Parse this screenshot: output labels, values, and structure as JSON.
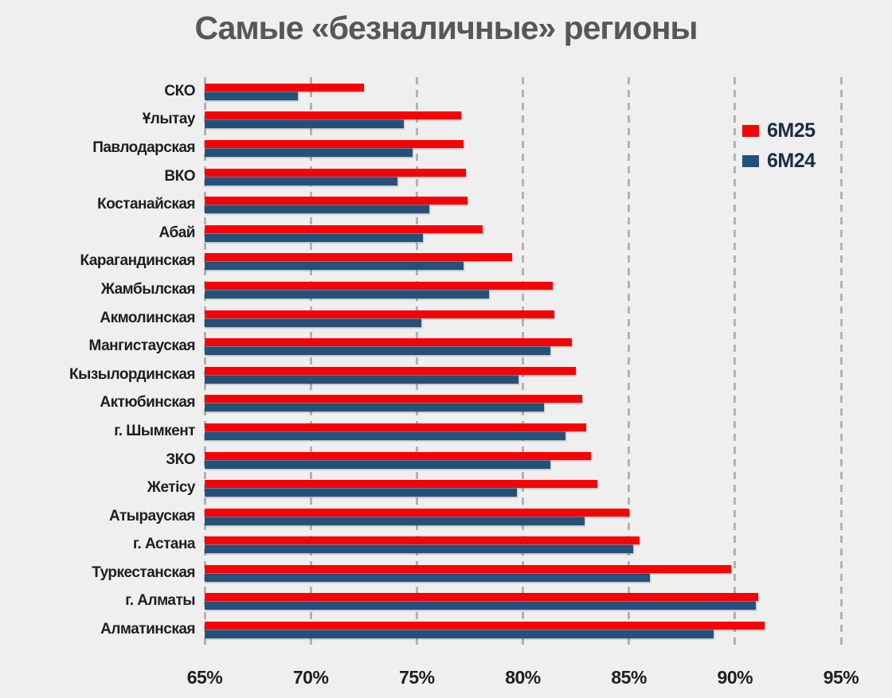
{
  "title": "Самые «безналичные» регионы",
  "colors": {
    "background": "#efeff0",
    "series_6m25": "#f40404",
    "series_6m24": "#24517a",
    "gridline": "#b4b2b2",
    "title_text": "#56575a",
    "axis_text": "#1e1e20",
    "legend_text": "#1d2b45"
  },
  "chart_data": {
    "type": "bar",
    "orientation": "horizontal",
    "title": "Самые «безналичные» регионы",
    "value_unit": "%",
    "xlim": [
      65,
      95
    ],
    "x_tick_values": [
      65,
      70,
      75,
      80,
      85,
      90,
      95
    ],
    "x_tick_labels": [
      "65%",
      "70%",
      "75%",
      "80%",
      "85%",
      "90%",
      "95%"
    ],
    "grid": "vertical-dashed",
    "legend_position": "inside-top-right",
    "categories": [
      "СКО",
      "Ұлытау",
      "Павлодарская",
      "ВКО",
      "Костанайская",
      "Абай",
      "Карагандинская",
      "Жамбылская",
      "Акмолинская",
      "Мангистауская",
      "Кызылординская",
      "Актюбинская",
      "г. Шымкент",
      "ЗКО",
      "Жетісу",
      "Атырауская",
      "г. Астана",
      "Туркестанская",
      "г. Алматы",
      "Алматинская"
    ],
    "series": [
      {
        "name": "6M25",
        "color": "#f40404",
        "values": [
          72.5,
          77.1,
          77.2,
          77.3,
          77.4,
          78.1,
          79.5,
          81.4,
          81.5,
          82.3,
          82.5,
          82.8,
          83.0,
          83.2,
          83.5,
          85.0,
          85.5,
          89.8,
          91.1,
          91.4
        ]
      },
      {
        "name": "6M24",
        "color": "#24517a",
        "values": [
          69.4,
          74.4,
          74.8,
          74.1,
          75.6,
          75.3,
          77.2,
          78.4,
          75.2,
          81.3,
          79.8,
          81.0,
          82.0,
          81.3,
          79.7,
          82.9,
          85.2,
          86.0,
          91.0,
          89.0
        ]
      }
    ]
  }
}
